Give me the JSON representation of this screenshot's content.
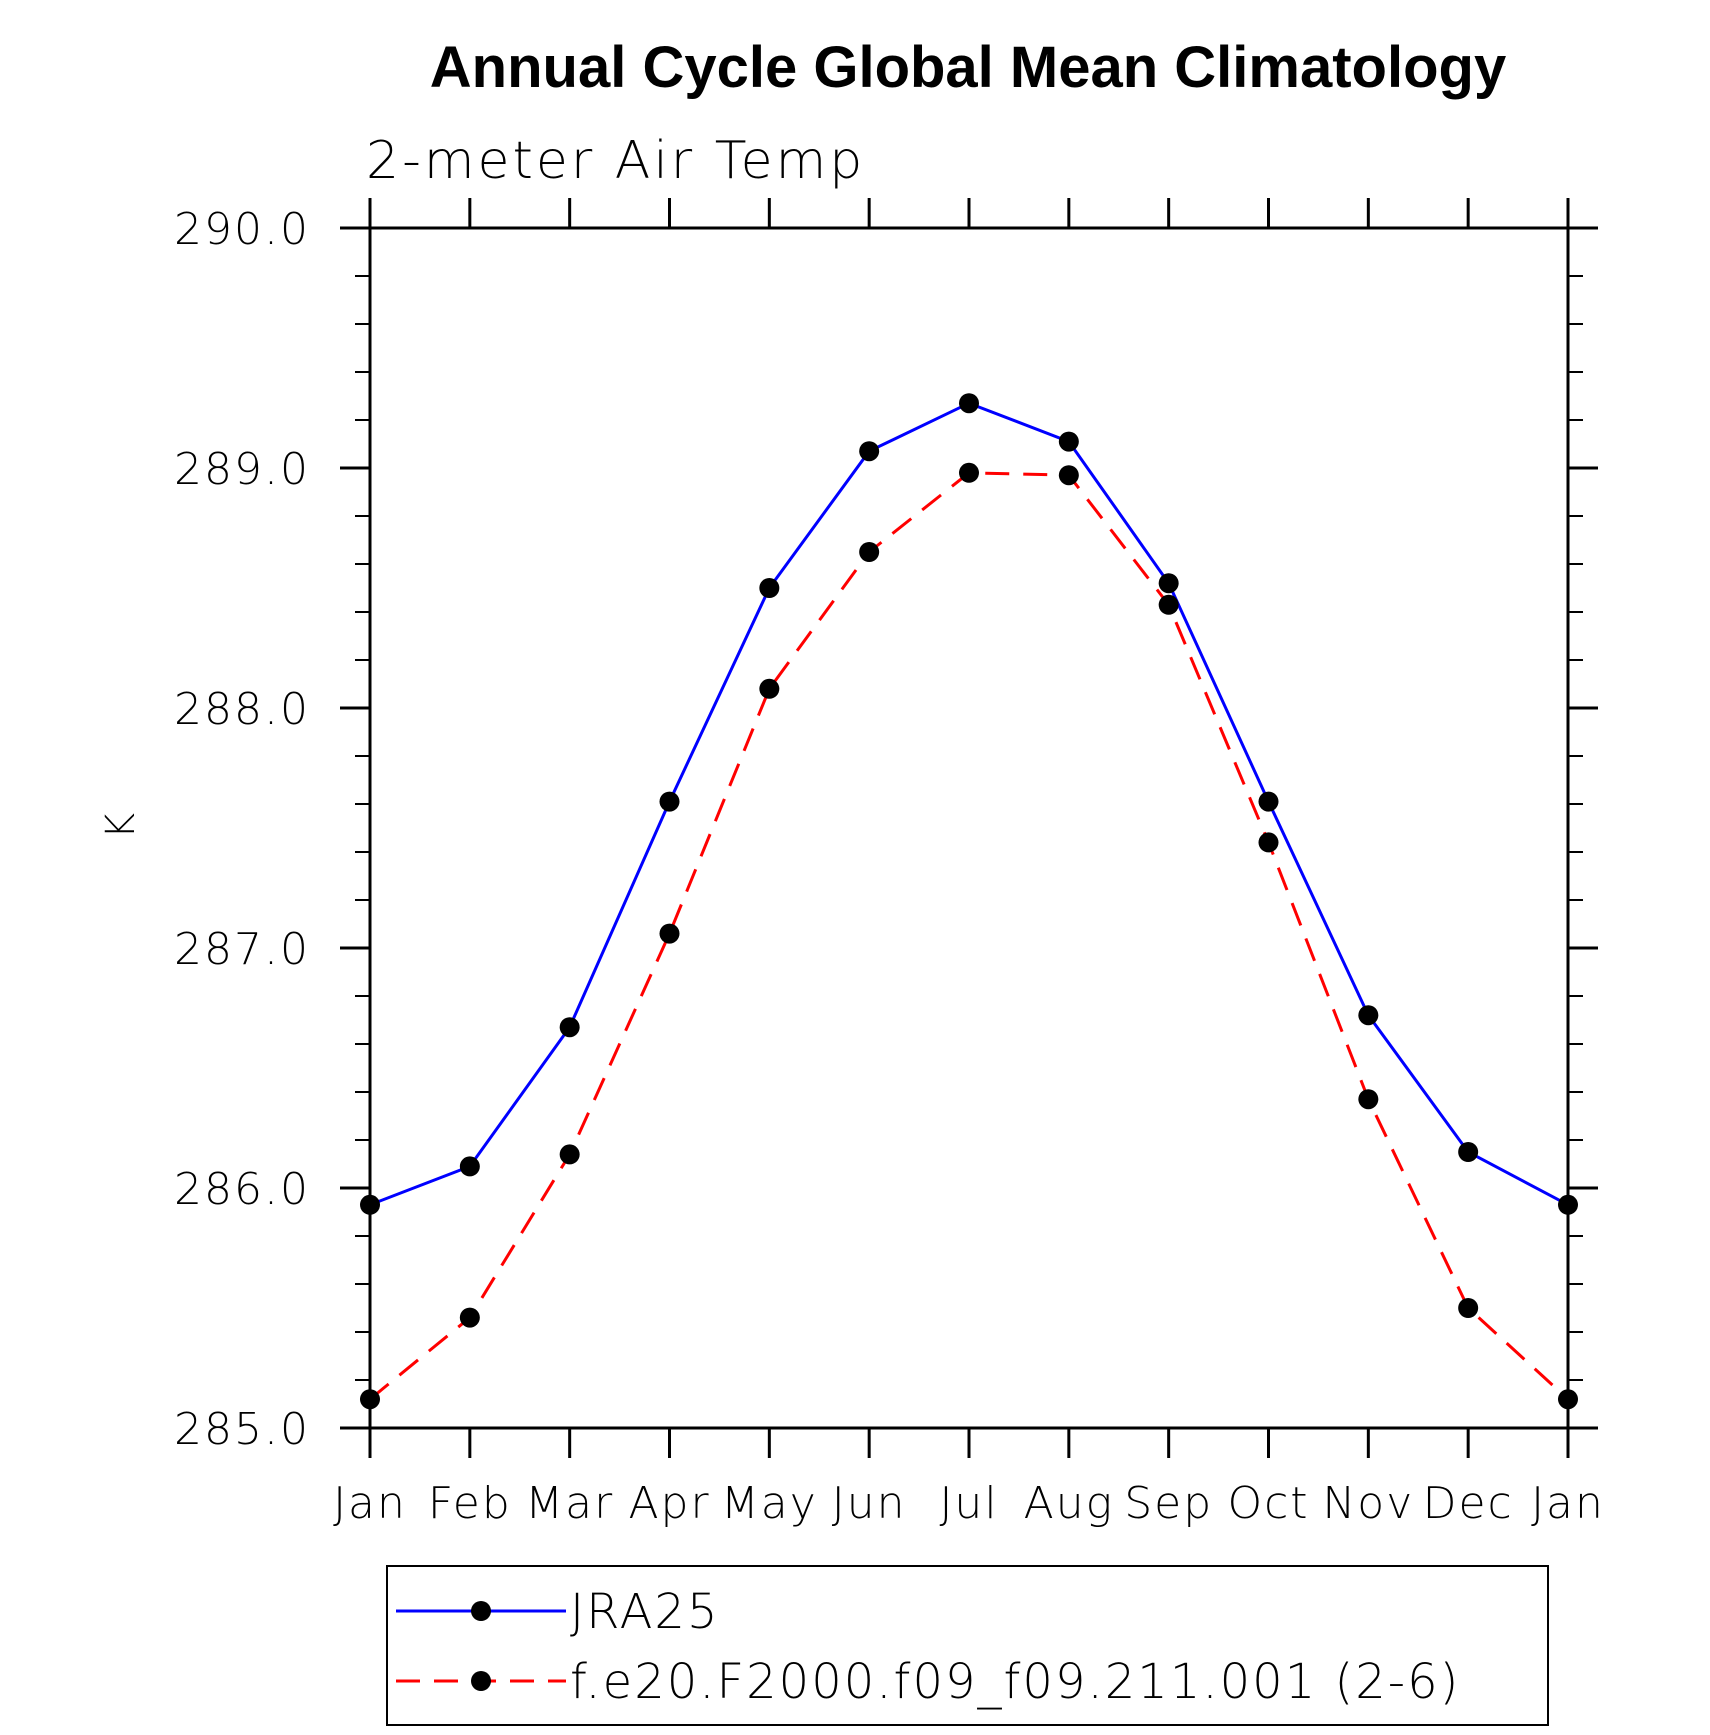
{
  "chart_data": {
    "type": "line",
    "title": "Annual Cycle Global Mean Climatology",
    "subtitle": "2-meter Air Temp",
    "xlabel": "",
    "ylabel": "K",
    "categories": [
      "Jan",
      "Feb",
      "Mar",
      "Apr",
      "May",
      "Jun",
      "Jul",
      "Aug",
      "Sep",
      "Oct",
      "Nov",
      "Dec",
      "Jan"
    ],
    "ylim": [
      285.0,
      290.0
    ],
    "yticks": [
      "285.0",
      "286.0",
      "287.0",
      "288.0",
      "289.0",
      "290.0"
    ],
    "ytick_values": [
      285.0,
      286.0,
      287.0,
      288.0,
      289.0,
      290.0
    ],
    "y_minor_step": 0.2,
    "grid": false,
    "legend_position": "bottom",
    "series": [
      {
        "name": "JRA25",
        "color": "#0000ff",
        "line_style": "solid",
        "marker": "circle",
        "values": [
          285.93,
          286.09,
          286.67,
          287.61,
          288.5,
          289.07,
          289.27,
          289.11,
          288.52,
          287.61,
          286.72,
          286.15,
          285.93
        ]
      },
      {
        "name": "f.e20.F2000.f09_f09.211.001 (2-6)",
        "color": "#ff0000",
        "line_style": "dashed",
        "marker": "circle",
        "values": [
          285.12,
          285.46,
          286.14,
          287.06,
          288.08,
          288.65,
          288.98,
          288.97,
          288.43,
          287.44,
          286.37,
          285.5,
          285.12
        ]
      }
    ]
  }
}
